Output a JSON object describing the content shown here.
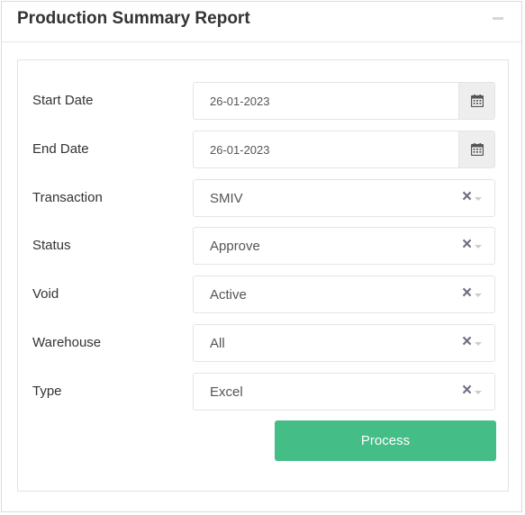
{
  "panel": {
    "title": "Production Summary Report",
    "collapse_icon": "minus-icon"
  },
  "form": {
    "start_date": {
      "label": "Start Date",
      "value": "26-01-2023",
      "icon": "calendar-icon"
    },
    "end_date": {
      "label": "End Date",
      "value": "26-01-2023",
      "icon": "calendar-icon"
    },
    "transaction": {
      "label": "Transaction",
      "value": "SMIV"
    },
    "status": {
      "label": "Status",
      "value": "Approve"
    },
    "void": {
      "label": "Void",
      "value": "Active"
    },
    "warehouse": {
      "label": "Warehouse",
      "value": "All"
    },
    "type": {
      "label": "Type",
      "value": "Excel"
    },
    "clear_icon": "close-icon",
    "dropdown_icon": "caret-down-icon",
    "process_label": "Process"
  },
  "colors": {
    "process_button": "#44bd87",
    "addon_background": "#eeeeee",
    "clear_icon": "#6b6f80"
  }
}
